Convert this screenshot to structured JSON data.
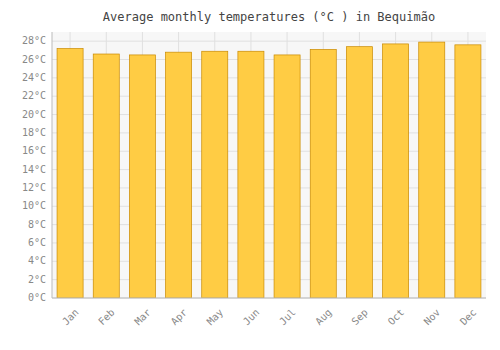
{
  "chart_data": {
    "type": "bar",
    "title": "Average monthly temperatures (°C ) in Bequimão",
    "categories": [
      "Jan",
      "Feb",
      "Mar",
      "Apr",
      "May",
      "Jun",
      "Jul",
      "Aug",
      "Sep",
      "Oct",
      "Nov",
      "Dec"
    ],
    "values": [
      27.2,
      26.6,
      26.5,
      26.8,
      26.9,
      26.9,
      26.5,
      27.1,
      27.4,
      27.7,
      27.9,
      27.6
    ],
    "color": "#FFCC44",
    "ylim": [
      0,
      29
    ],
    "yticks": [
      {
        "value": 0,
        "label": "0°C"
      },
      {
        "value": 2,
        "label": "2°C"
      },
      {
        "value": 4,
        "label": "4°C"
      },
      {
        "value": 6,
        "label": "6°C"
      },
      {
        "value": 8,
        "label": "8°C"
      },
      {
        "value": 10,
        "label": "10°C"
      },
      {
        "value": 12,
        "label": "12°C"
      },
      {
        "value": 14,
        "label": "14°C"
      },
      {
        "value": 16,
        "label": "16°C"
      },
      {
        "value": 18,
        "label": "18°C"
      },
      {
        "value": 20,
        "label": "20°C"
      },
      {
        "value": 22,
        "label": "22°C"
      },
      {
        "value": 24,
        "label": "24°C"
      },
      {
        "value": 26,
        "label": "26°C"
      },
      {
        "value": 28,
        "label": "28°C"
      }
    ],
    "grid": true
  }
}
